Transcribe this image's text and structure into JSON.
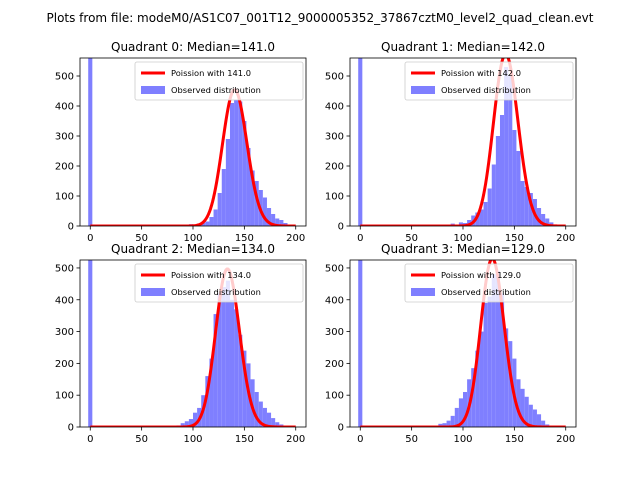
{
  "figure": {
    "suptitle": "Plots from file: modeM0/AS1C07_001T12_9000005352_37867cztM0_level2_quad_clean.evt"
  },
  "colors": {
    "histogram": "#7f7fff",
    "poisson_line": "#ff0000",
    "axis": "#000000"
  },
  "chart_data": [
    {
      "type": "bar",
      "title": "Quadrant 0: Median=141.0",
      "median": 141,
      "xlim": [
        -10,
        210
      ],
      "ylim": [
        0,
        560
      ],
      "xticks": [
        0,
        50,
        100,
        150,
        200
      ],
      "yticks": [
        0,
        100,
        200,
        300,
        400,
        500
      ],
      "legend": [
        "Poission with 141.0",
        "Observed distribution"
      ],
      "legend_position": "upper right",
      "bin_width": 4,
      "spike": {
        "x": 0,
        "height": 560
      },
      "bins": [
        [
          88,
          5
        ],
        [
          92,
          3
        ],
        [
          96,
          6
        ],
        [
          100,
          4
        ],
        [
          104,
          8
        ],
        [
          108,
          10
        ],
        [
          112,
          15
        ],
        [
          116,
          30
        ],
        [
          120,
          55
        ],
        [
          124,
          110
        ],
        [
          128,
          190
        ],
        [
          132,
          290
        ],
        [
          136,
          410
        ],
        [
          140,
          420
        ],
        [
          144,
          415
        ],
        [
          148,
          350
        ],
        [
          152,
          260
        ],
        [
          156,
          185
        ],
        [
          160,
          150
        ],
        [
          164,
          120
        ],
        [
          168,
          95
        ],
        [
          172,
          60
        ],
        [
          176,
          40
        ],
        [
          180,
          25
        ],
        [
          184,
          20
        ],
        [
          188,
          10
        ],
        [
          192,
          5
        ]
      ]
    },
    {
      "type": "bar",
      "title": "Quadrant 1: Median=142.0",
      "median": 142,
      "xlim": [
        -10,
        210
      ],
      "ylim": [
        0,
        560
      ],
      "xticks": [
        0,
        50,
        100,
        150,
        200
      ],
      "yticks": [
        0,
        100,
        200,
        300,
        400,
        500
      ],
      "legend": [
        "Poission with 142.0",
        "Observed distribution"
      ],
      "legend_position": "upper right",
      "bin_width": 4,
      "spike": {
        "x": 0,
        "height": 560
      },
      "bins": [
        [
          72,
          5
        ],
        [
          80,
          3
        ],
        [
          88,
          8
        ],
        [
          96,
          12
        ],
        [
          100,
          10
        ],
        [
          104,
          20
        ],
        [
          108,
          35
        ],
        [
          112,
          45
        ],
        [
          116,
          55
        ],
        [
          120,
          80
        ],
        [
          124,
          125
        ],
        [
          128,
          205
        ],
        [
          132,
          300
        ],
        [
          136,
          370
        ],
        [
          140,
          530
        ],
        [
          144,
          500
        ],
        [
          148,
          320
        ],
        [
          152,
          250
        ],
        [
          156,
          150
        ],
        [
          160,
          130
        ],
        [
          164,
          110
        ],
        [
          168,
          90
        ],
        [
          172,
          60
        ],
        [
          176,
          40
        ],
        [
          180,
          25
        ],
        [
          184,
          12
        ],
        [
          188,
          5
        ]
      ]
    },
    {
      "type": "bar",
      "title": "Quadrant 2: Median=134.0",
      "median": 134,
      "xlim": [
        -10,
        210
      ],
      "ylim": [
        0,
        525
      ],
      "xticks": [
        0,
        50,
        100,
        150,
        200
      ],
      "yticks": [
        0,
        100,
        200,
        300,
        400,
        500
      ],
      "legend": [
        "Poission with 134.0",
        "Observed distribution"
      ],
      "legend_position": "upper right",
      "bin_width": 4,
      "spike": {
        "x": 0,
        "height": 525
      },
      "bins": [
        [
          84,
          5
        ],
        [
          88,
          12
        ],
        [
          92,
          18
        ],
        [
          96,
          25
        ],
        [
          100,
          45
        ],
        [
          104,
          60
        ],
        [
          108,
          100
        ],
        [
          112,
          160
        ],
        [
          116,
          215
        ],
        [
          120,
          355
        ],
        [
          124,
          420
        ],
        [
          128,
          440
        ],
        [
          132,
          460
        ],
        [
          136,
          400
        ],
        [
          140,
          370
        ],
        [
          144,
          290
        ],
        [
          148,
          240
        ],
        [
          152,
          200
        ],
        [
          156,
          150
        ],
        [
          160,
          110
        ],
        [
          164,
          80
        ],
        [
          168,
          60
        ],
        [
          172,
          45
        ],
        [
          176,
          28
        ],
        [
          180,
          15
        ],
        [
          184,
          8
        ],
        [
          188,
          4
        ]
      ]
    },
    {
      "type": "bar",
      "title": "Quadrant 3: Median=129.0",
      "median": 129,
      "xlim": [
        -10,
        210
      ],
      "ylim": [
        0,
        525
      ],
      "xticks": [
        0,
        50,
        100,
        150,
        200
      ],
      "yticks": [
        0,
        100,
        200,
        300,
        400,
        500
      ],
      "legend": [
        "Poission with 129.0",
        "Observed distribution"
      ],
      "legend_position": "upper right",
      "bin_width": 4,
      "spike": {
        "x": 0,
        "height": 525
      },
      "bins": [
        [
          76,
          10
        ],
        [
          80,
          12
        ],
        [
          84,
          20
        ],
        [
          88,
          35
        ],
        [
          92,
          60
        ],
        [
          96,
          90
        ],
        [
          100,
          110
        ],
        [
          104,
          150
        ],
        [
          108,
          185
        ],
        [
          112,
          240
        ],
        [
          116,
          300
        ],
        [
          120,
          390
        ],
        [
          124,
          410
        ],
        [
          128,
          480
        ],
        [
          132,
          490
        ],
        [
          136,
          420
        ],
        [
          140,
          310
        ],
        [
          144,
          270
        ],
        [
          148,
          215
        ],
        [
          152,
          150
        ],
        [
          156,
          120
        ],
        [
          160,
          95
        ],
        [
          164,
          70
        ],
        [
          168,
          55
        ],
        [
          172,
          40
        ],
        [
          176,
          20
        ],
        [
          180,
          8
        ]
      ]
    }
  ]
}
